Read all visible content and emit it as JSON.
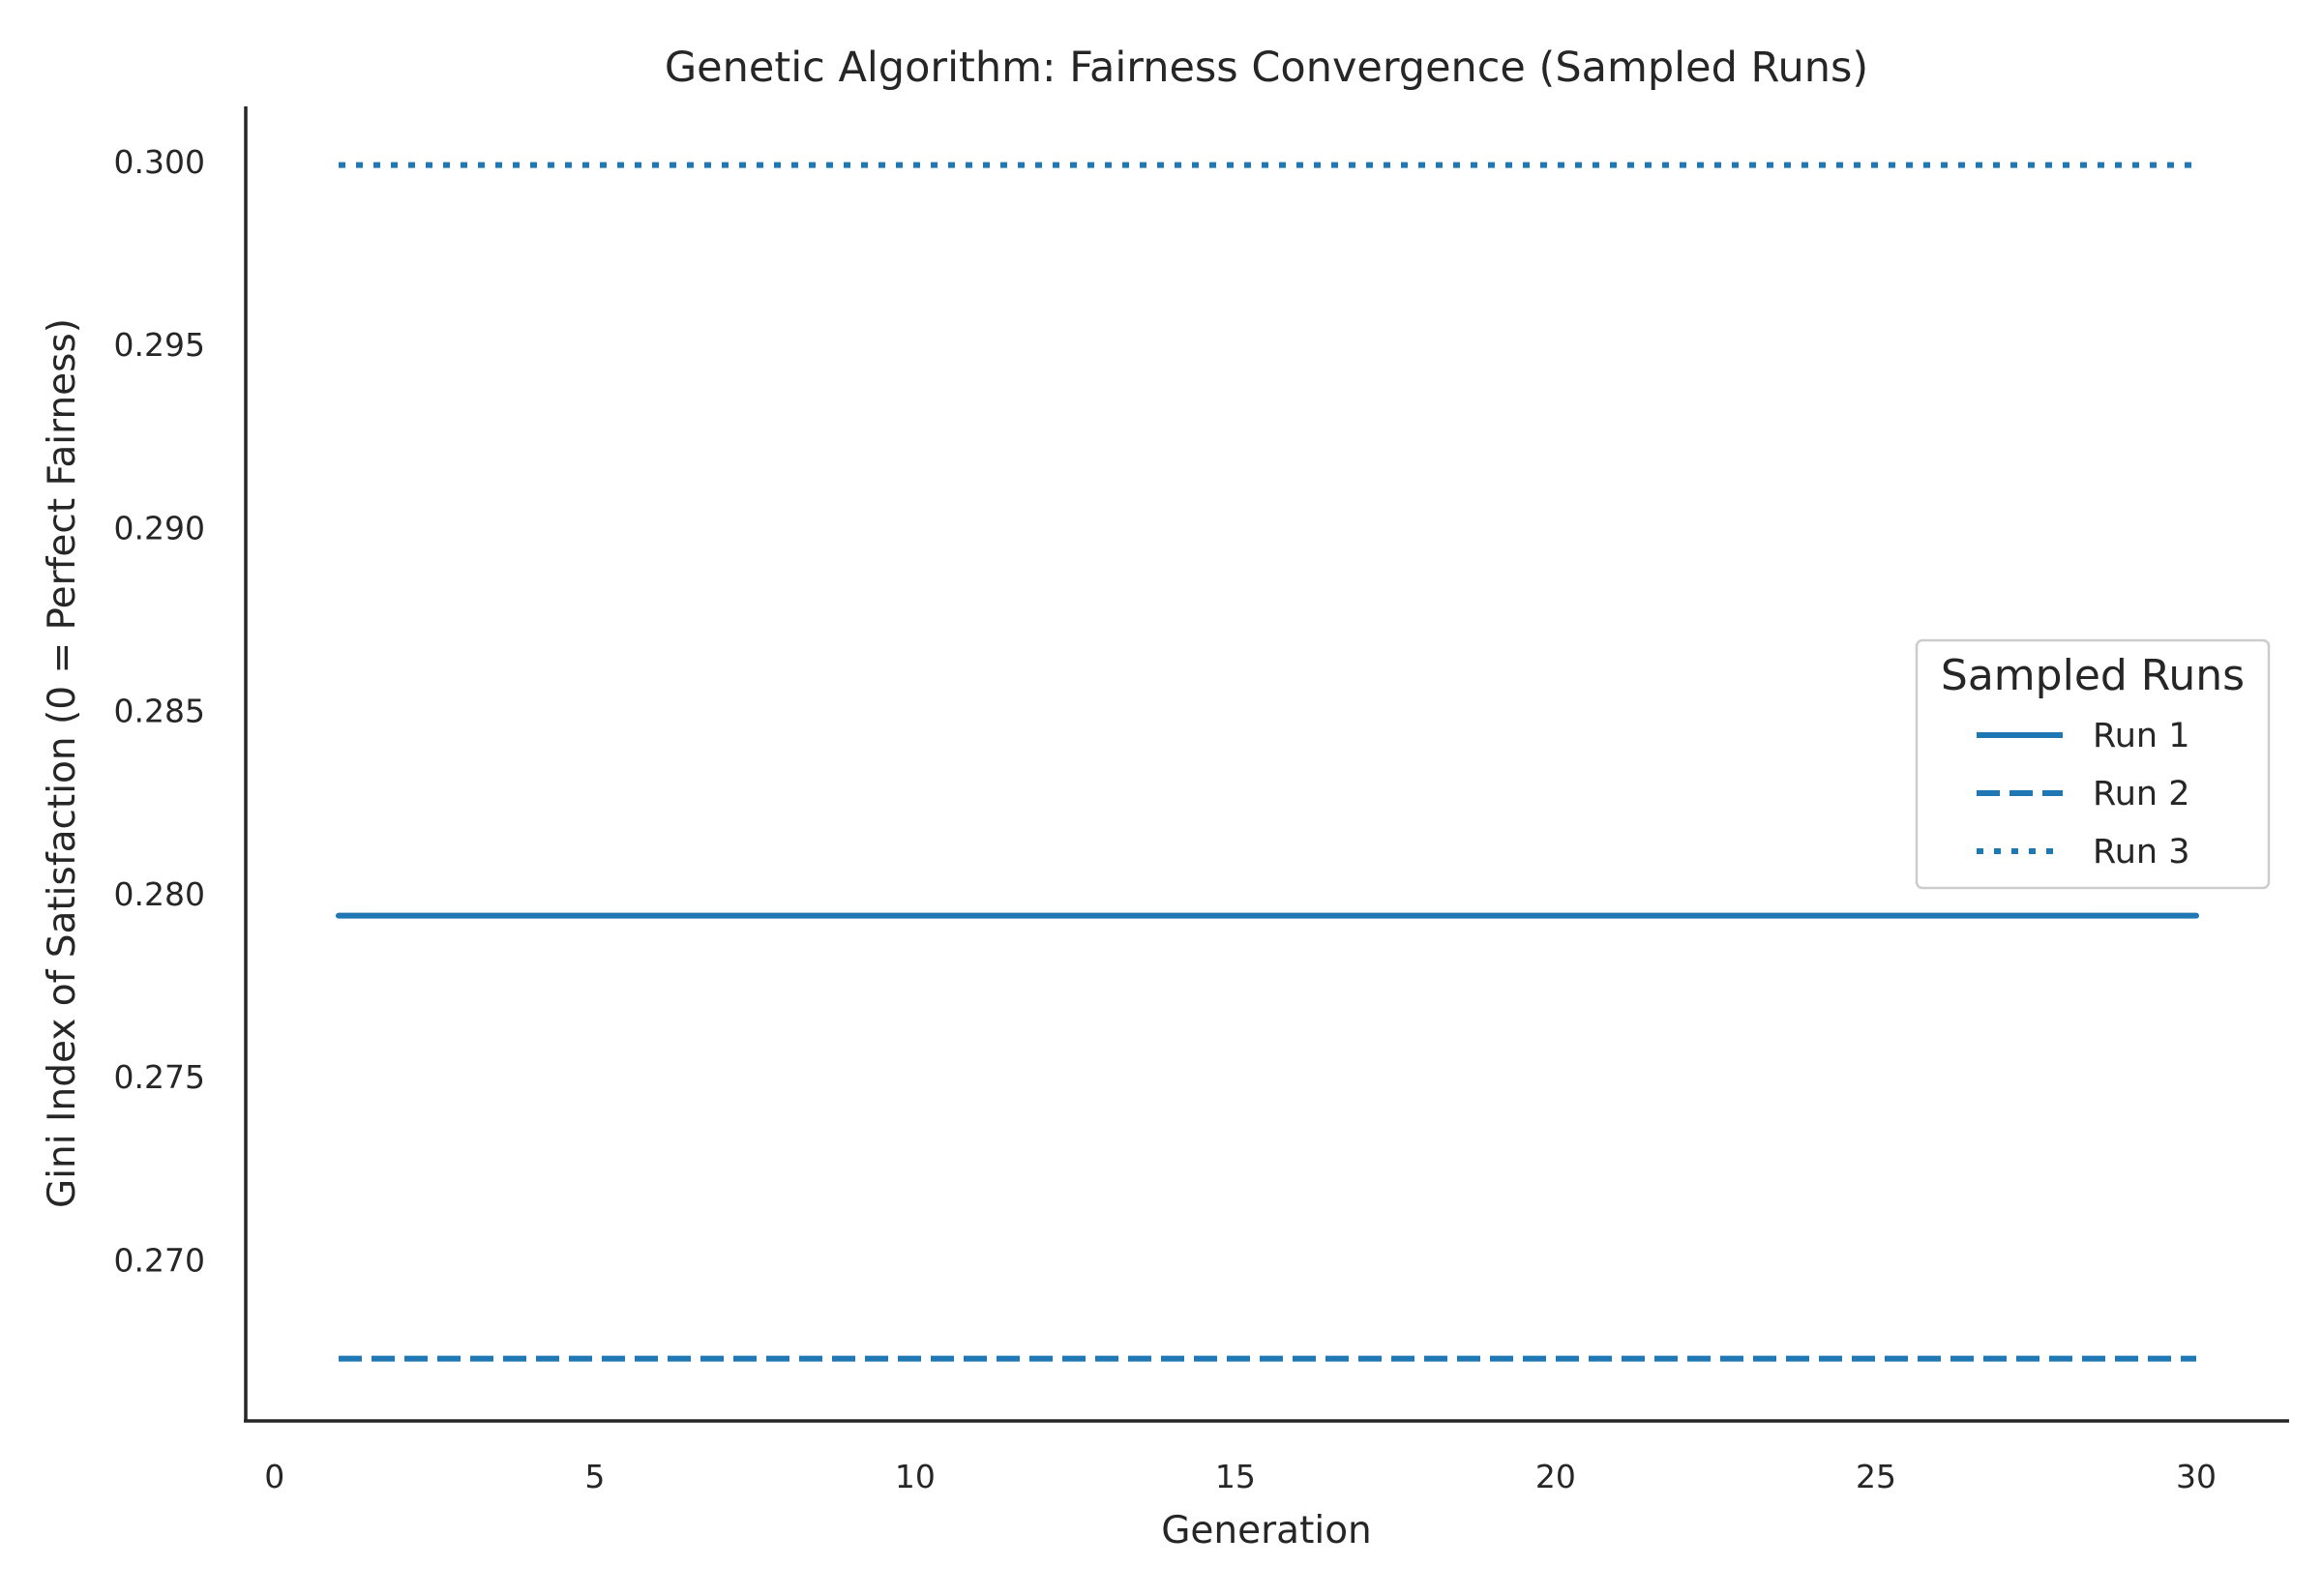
{
  "chart_data": {
    "type": "line",
    "title": "Genetic Algorithm: Fairness Convergence (Sampled Runs)",
    "xlabel": "Generation",
    "ylabel": "Gini Index of Satisfaction (0 = Perfect Fairness)",
    "xlim": [
      -0.45,
      31.45
    ],
    "ylim": [
      0.2656,
      0.3015
    ],
    "xticks": [
      0,
      5,
      10,
      15,
      20,
      25,
      30
    ],
    "yticks": [
      0.27,
      0.275,
      0.28,
      0.285,
      0.29,
      0.295,
      0.3
    ],
    "ytick_labels": [
      "0.270",
      "0.275",
      "0.280",
      "0.285",
      "0.290",
      "0.295",
      "0.300"
    ],
    "grid": false,
    "legend": {
      "title": "Sampled Runs",
      "position": "center-right"
    },
    "series": [
      {
        "name": "Run 1",
        "style": "solid",
        "color": "#1f77b4",
        "x": [
          1,
          30
        ],
        "y": [
          0.2794,
          0.2794
        ]
      },
      {
        "name": "Run 2",
        "style": "dashed",
        "color": "#1f77b4",
        "x": [
          1,
          30
        ],
        "y": [
          0.2673,
          0.2673
        ]
      },
      {
        "name": "Run 3",
        "style": "dotted",
        "color": "#1f77b4",
        "x": [
          1,
          30
        ],
        "y": [
          0.2999,
          0.2999
        ]
      }
    ]
  }
}
